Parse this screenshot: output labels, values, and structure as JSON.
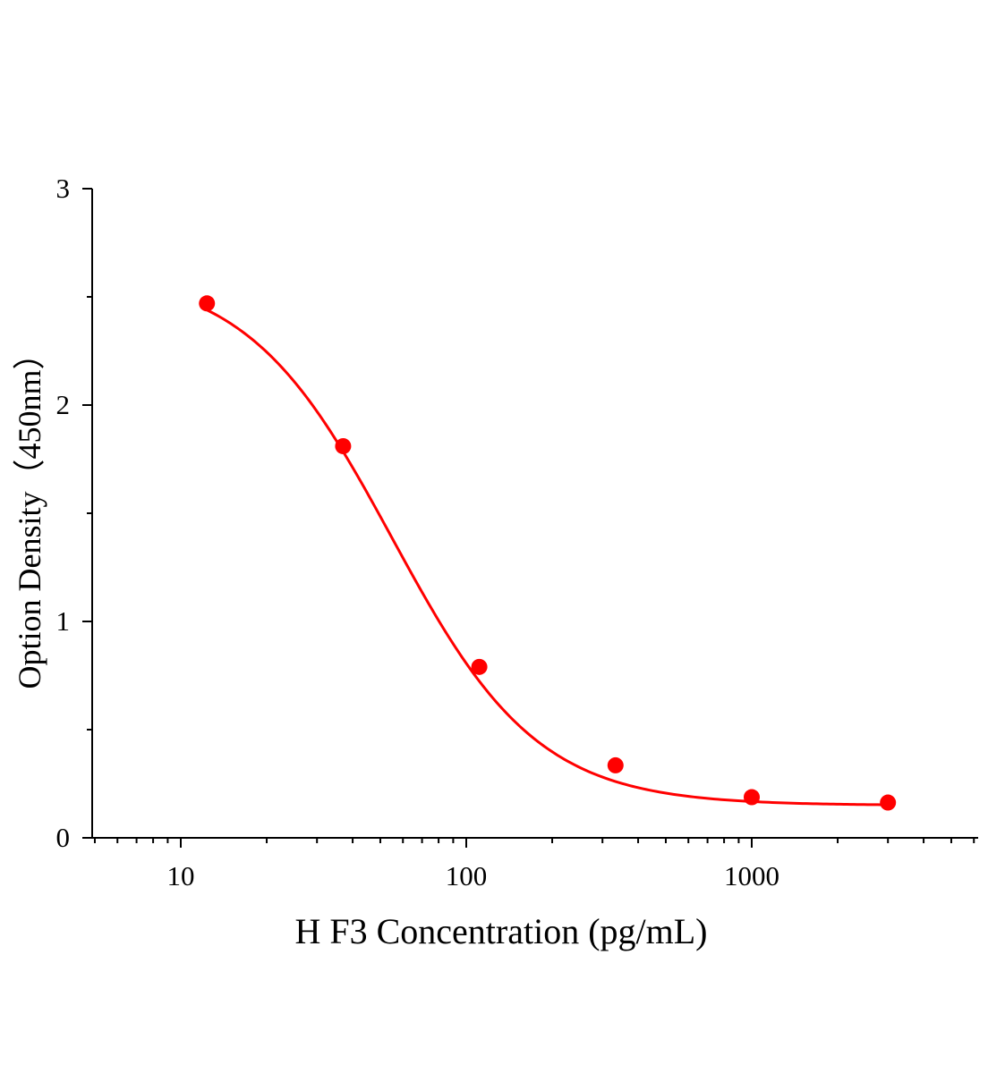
{
  "chart_data": {
    "type": "scatter",
    "xlabel": "H F3 Concentration (pg/mL)",
    "ylabel": "Option Density（450nm）",
    "x_scale": "log",
    "xlim": [
      5,
      6000
    ],
    "ylim": [
      0,
      3
    ],
    "x_ticks": [
      10,
      100,
      1000
    ],
    "x_tick_labels": [
      "10",
      "100",
      "1000"
    ],
    "y_ticks": [
      0,
      1,
      2,
      3
    ],
    "y_tick_labels": [
      "0",
      "1",
      "2",
      "3"
    ],
    "grid": false,
    "legend": "none",
    "series": [
      {
        "points": [
          {
            "x": 12.35,
            "y": 2.47
          },
          {
            "x": 37.04,
            "y": 1.81
          },
          {
            "x": 111.1,
            "y": 0.79
          },
          {
            "x": 333.3,
            "y": 0.335
          },
          {
            "x": 1000,
            "y": 0.188
          },
          {
            "x": 3000,
            "y": 0.163
          }
        ],
        "fit": "four-parameter logistic",
        "fit_params": {
          "top": 2.62,
          "bottom": 0.15,
          "ec50": 55,
          "hill": 1.7
        },
        "color": "#ff0000"
      }
    ]
  }
}
